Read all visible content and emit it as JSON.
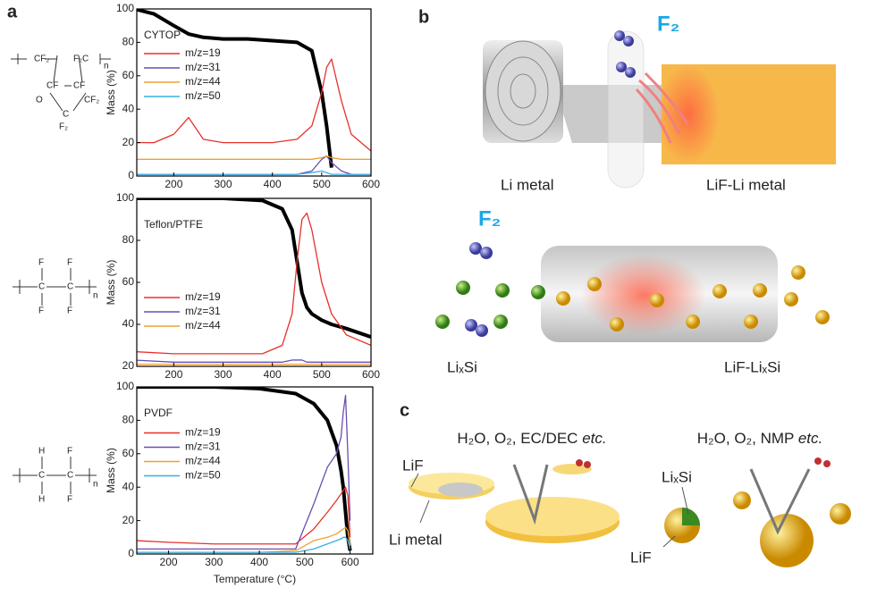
{
  "chart_data": [
    {
      "type": "line",
      "title": "CYTOP",
      "ylabel": "Mass (%)",
      "x": [
        120,
        160,
        200,
        230,
        260,
        300,
        350,
        400,
        450,
        480,
        500,
        510,
        520,
        540,
        560,
        600
      ],
      "xlim": [
        125,
        600
      ],
      "xticks": [
        200,
        300,
        400,
        500,
        600
      ],
      "ylim": [
        0,
        100
      ],
      "yticks": [
        0,
        20,
        40,
        60,
        80,
        100
      ],
      "legend": "upper left",
      "series": [
        {
          "color": "#000000",
          "values": [
            100,
            97,
            90,
            85,
            83,
            82,
            82,
            81,
            80,
            75,
            50,
            30,
            5,
            null,
            null,
            null
          ]
        },
        {
          "name": "m/z=19",
          "color": "#e8302a",
          "values": [
            20,
            20,
            25,
            35,
            22,
            20,
            20,
            20,
            22,
            30,
            50,
            65,
            70,
            45,
            25,
            15
          ]
        },
        {
          "name": "m/z=31",
          "color": "#6a4fb0",
          "values": [
            1,
            1,
            1,
            1,
            1,
            1,
            1,
            1,
            1,
            3,
            10,
            12,
            8,
            3,
            1,
            1
          ]
        },
        {
          "name": "m/z=44",
          "color": "#f0a030",
          "values": [
            10,
            10,
            10,
            10,
            10,
            10,
            10,
            10,
            10,
            10,
            11,
            12,
            11,
            10,
            10,
            10
          ]
        },
        {
          "name": "m/z=50",
          "color": "#33b0e8",
          "values": [
            1,
            1,
            1,
            1,
            1,
            1,
            1,
            1,
            1,
            2,
            3,
            2,
            1,
            1,
            1,
            1
          ]
        }
      ]
    },
    {
      "type": "line",
      "title": "Teflon/PTFE",
      "ylabel": "Mass (%)",
      "x": [
        120,
        200,
        300,
        380,
        420,
        440,
        450,
        460,
        470,
        480,
        500,
        520,
        550,
        600
      ],
      "xlim": [
        125,
        600
      ],
      "xticks": [
        200,
        300,
        400,
        500,
        600
      ],
      "ylim": [
        20,
        100
      ],
      "yticks": [
        20,
        40,
        60,
        80,
        100
      ],
      "legend": "lower left",
      "series": [
        {
          "color": "#000000",
          "values": [
            100,
            100,
            100,
            99,
            95,
            85,
            70,
            55,
            48,
            45,
            42,
            40,
            38,
            34
          ]
        },
        {
          "name": "m/z=19",
          "color": "#e8302a",
          "values": [
            27,
            26,
            26,
            26,
            30,
            45,
            70,
            90,
            93,
            85,
            60,
            45,
            35,
            30
          ]
        },
        {
          "name": "m/z=31",
          "color": "#6a4fb0",
          "values": [
            23,
            22,
            22,
            22,
            22,
            23,
            23,
            23,
            22,
            22,
            22,
            22,
            22,
            22
          ]
        },
        {
          "name": "m/z=44",
          "color": "#f0a030",
          "values": [
            21,
            21,
            21,
            21,
            21,
            21,
            21,
            21,
            21,
            21,
            21,
            21,
            21,
            21
          ]
        }
      ]
    },
    {
      "type": "line",
      "title": "PVDF",
      "ylabel": "Mass (%)",
      "xlabel": "Temperature (°C)",
      "x": [
        130,
        200,
        300,
        400,
        480,
        520,
        550,
        570,
        580,
        585,
        590,
        595,
        600,
        610
      ],
      "xlim": [
        130,
        650
      ],
      "xticks": [
        200,
        300,
        400,
        500,
        600
      ],
      "ylim": [
        0,
        100
      ],
      "yticks": [
        0,
        20,
        40,
        60,
        80,
        100
      ],
      "legend": "center left",
      "series": [
        {
          "color": "#000000",
          "values": [
            100,
            100,
            100,
            99,
            96,
            90,
            80,
            65,
            50,
            40,
            25,
            10,
            2,
            null
          ]
        },
        {
          "name": "m/z=19",
          "color": "#e8302a",
          "values": [
            8,
            7,
            6,
            6,
            6,
            15,
            25,
            32,
            36,
            38,
            40,
            35,
            10,
            null
          ]
        },
        {
          "name": "m/z=31",
          "color": "#6a4fb0",
          "values": [
            3,
            3,
            3,
            3,
            3,
            30,
            52,
            60,
            70,
            85,
            95,
            60,
            20,
            null
          ]
        },
        {
          "name": "m/z=44",
          "color": "#f0a030",
          "values": [
            1,
            1,
            1,
            1,
            2,
            8,
            10,
            12,
            14,
            15,
            16,
            14,
            5,
            null
          ]
        },
        {
          "name": "m/z=50",
          "color": "#33b0e8",
          "values": [
            1,
            1,
            1,
            1,
            1,
            3,
            6,
            8,
            9,
            10,
            10,
            8,
            3,
            null
          ]
        }
      ]
    }
  ],
  "figure": {
    "panels": [
      "a",
      "b",
      "c"
    ],
    "structures": {
      "cytop": [
        "CF₂",
        "F₂C",
        "n",
        "CF",
        "CF",
        "O",
        "CF₂",
        "C",
        "F₂"
      ],
      "ptfe": [
        "F",
        "F",
        "C",
        "C",
        "F",
        "F",
        "n"
      ],
      "pvdf": [
        "H",
        "F",
        "C",
        "C",
        "H",
        "F",
        "n"
      ]
    },
    "b_top": {
      "gas": "F₂",
      "left": "Li metal",
      "right": "LiF-Li metal"
    },
    "b_bottom": {
      "gas": "F₂",
      "left": "LiₓSi",
      "right": "LiF-LiₓSi"
    },
    "c": {
      "left_env": "H₂O, O₂, EC/DEC",
      "right_env": "H₂O, O₂, NMP",
      "etc": "etc.",
      "left_coat": "LiF",
      "left_core": "Li metal",
      "right_core": "LiₓSi",
      "right_coat": "LiF"
    }
  }
}
